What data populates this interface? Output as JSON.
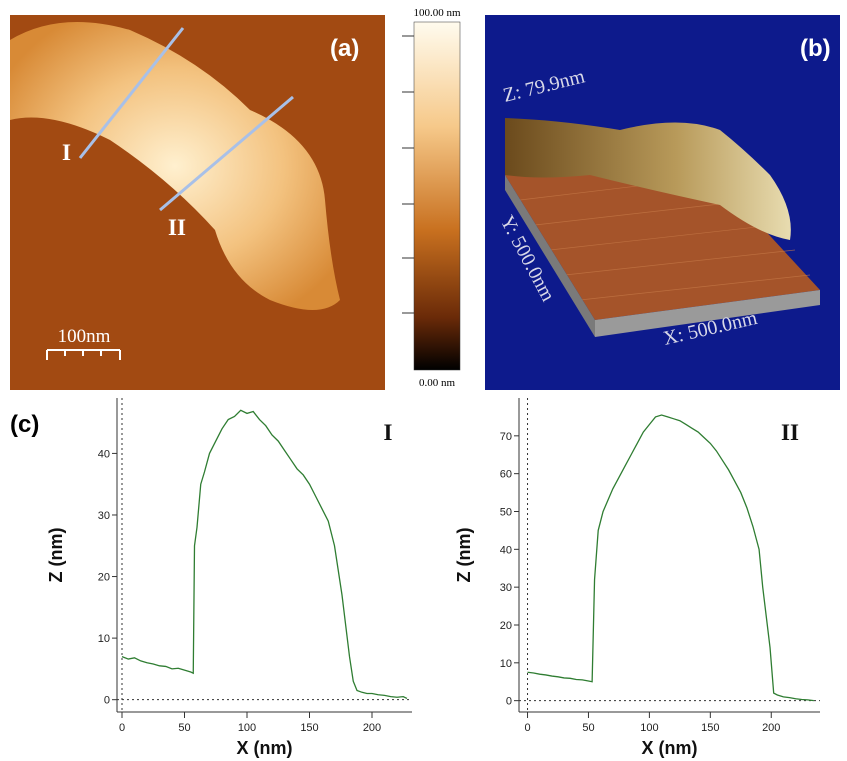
{
  "panels": {
    "a": {
      "label": "(a)",
      "line_labels": [
        "I",
        "II"
      ],
      "scale_bar": "100nm",
      "colorbar": {
        "max": "100.00 nm",
        "min": "0.00 nm"
      }
    },
    "b": {
      "label": "(b)",
      "z_axis": "Z: 79.9nm",
      "y_axis": "Y: 500.0nm",
      "x_axis": "X: 500.0nm"
    },
    "c": {
      "label": "(c)"
    }
  },
  "chart_data": [
    {
      "type": "line",
      "annotation": "I",
      "x_label": "X (nm)",
      "y_label": "Z (nm)",
      "color": "#2f7d32",
      "x": [
        0,
        5,
        10,
        15,
        20,
        25,
        30,
        35,
        40,
        45,
        50,
        55,
        57,
        58,
        60,
        63,
        66,
        70,
        75,
        80,
        85,
        90,
        95,
        100,
        105,
        110,
        115,
        120,
        125,
        130,
        135,
        140,
        145,
        150,
        155,
        160,
        165,
        170,
        173,
        176,
        179,
        182,
        185,
        188,
        192,
        196,
        200,
        205,
        210,
        215,
        220,
        225,
        228
      ],
      "values": [
        7,
        6.6,
        6.8,
        6.3,
        6.0,
        5.8,
        5.5,
        5.4,
        5.0,
        5.1,
        4.8,
        4.5,
        4.3,
        25,
        28,
        35,
        37,
        40,
        42,
        44,
        45.5,
        46,
        47,
        46.5,
        46.8,
        45.5,
        44.5,
        43,
        42,
        40.5,
        39,
        37.5,
        36.5,
        35,
        33,
        31,
        29,
        25,
        21,
        17,
        12,
        7,
        3,
        1.5,
        1.2,
        1.0,
        1.0,
        0.8,
        0.7,
        0.5,
        0.4,
        0.5,
        0.2
      ],
      "xlim": [
        -4,
        232
      ],
      "ylim": [
        -2,
        49
      ],
      "xticks": [
        0,
        50,
        100,
        150,
        200
      ],
      "yticks": [
        0,
        10,
        20,
        30,
        40
      ]
    },
    {
      "type": "line",
      "annotation": "II",
      "x_label": "X (nm)",
      "y_label": "Z (nm)",
      "color": "#2f7d32",
      "x": [
        0,
        5,
        10,
        15,
        20,
        25,
        30,
        35,
        40,
        45,
        50,
        53,
        55,
        58,
        62,
        66,
        70,
        75,
        80,
        85,
        90,
        95,
        100,
        105,
        110,
        115,
        120,
        125,
        130,
        135,
        140,
        145,
        150,
        155,
        160,
        165,
        170,
        175,
        180,
        185,
        190,
        193,
        196,
        199,
        202,
        205,
        210,
        215,
        220,
        225,
        230,
        235
      ],
      "values": [
        7.5,
        7.3,
        7.0,
        6.8,
        6.5,
        6.3,
        6.0,
        5.9,
        5.6,
        5.5,
        5.2,
        5.0,
        32,
        45,
        50,
        53,
        56,
        59,
        62,
        65,
        68,
        71,
        73,
        75,
        75.5,
        75,
        74.5,
        74,
        73,
        72,
        71,
        69.5,
        68,
        66,
        63.5,
        61,
        58,
        55,
        51,
        46,
        40,
        30,
        22,
        14,
        2,
        1.5,
        1.0,
        0.8,
        0.5,
        0.3,
        0.2,
        0.0
      ],
      "xlim": [
        -7,
        240
      ],
      "ylim": [
        -3,
        80
      ],
      "xticks": [
        0,
        50,
        100,
        150,
        200
      ],
      "yticks": [
        0,
        10,
        20,
        30,
        40,
        50,
        60,
        70
      ]
    }
  ]
}
